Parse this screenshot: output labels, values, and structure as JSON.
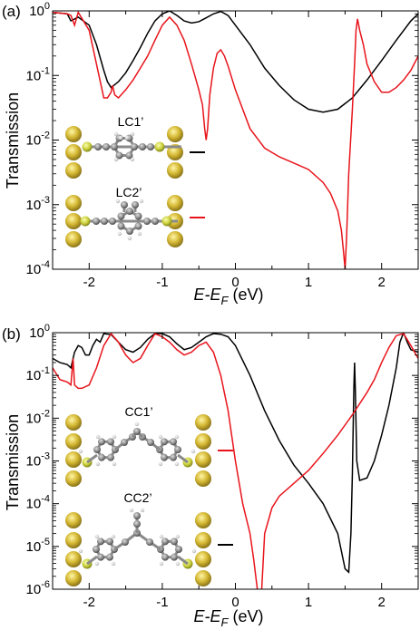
{
  "chart_data": [
    {
      "panel_label": "(a)",
      "type": "line",
      "xlabel_main": "E",
      "xlabel_sub1": "-E",
      "xlabel_sub2": "F",
      "xlabel_unit": "(eV)",
      "ylabel": "Transmission",
      "xlim": [
        -2.5,
        2.5
      ],
      "ylim": [
        0.0001,
        1
      ],
      "yscale": "log",
      "xticks": [
        "-2",
        "-1",
        "0",
        "1",
        "2"
      ],
      "yticks": [
        {
          "base": "10",
          "exp": "0"
        },
        {
          "base": "10",
          "exp": "-1"
        },
        {
          "base": "10",
          "exp": "-2"
        },
        {
          "base": "10",
          "exp": "-3"
        },
        {
          "base": "10",
          "exp": "-4"
        }
      ],
      "legend": [
        {
          "label": "LC1’",
          "color": "#000000"
        },
        {
          "label": "LC2’",
          "color": "#e8141b"
        }
      ],
      "series": [
        {
          "color": "#000000",
          "x": [
            -2.5,
            -2.3,
            -2.25,
            -2.15,
            -2.0,
            -1.9,
            -1.8,
            -1.75,
            -1.7,
            -1.6,
            -1.5,
            -1.4,
            -1.3,
            -1.2,
            -1.1,
            -1.0,
            -0.9,
            -0.8,
            -0.7,
            -0.6,
            -0.5,
            -0.4,
            -0.3,
            -0.2,
            -0.1,
            0.0,
            0.2,
            0.4,
            0.6,
            0.8,
            1.0,
            1.2,
            1.4,
            1.6,
            1.8,
            2.0,
            2.2,
            2.4,
            2.5
          ],
          "y": [
            0.95,
            0.9,
            0.7,
            0.8,
            0.6,
            0.3,
            0.12,
            0.08,
            0.065,
            0.08,
            0.11,
            0.17,
            0.27,
            0.45,
            0.7,
            0.9,
            1.0,
            0.85,
            0.7,
            0.65,
            0.68,
            0.78,
            0.9,
            0.98,
            0.85,
            0.6,
            0.3,
            0.13,
            0.07,
            0.042,
            0.03,
            0.027,
            0.03,
            0.045,
            0.085,
            0.17,
            0.35,
            0.7,
            0.9
          ]
        },
        {
          "color": "#e8141b",
          "x": [
            -2.5,
            -2.3,
            -2.25,
            -2.2,
            -2.15,
            -2.0,
            -1.9,
            -1.8,
            -1.75,
            -1.7,
            -1.68,
            -1.65,
            -1.6,
            -1.5,
            -1.4,
            -1.3,
            -1.2,
            -1.1,
            -1.0,
            -0.9,
            -0.8,
            -0.7,
            -0.6,
            -0.5,
            -0.45,
            -0.42,
            -0.4,
            -0.38,
            -0.35,
            -0.3,
            -0.25,
            -0.2,
            -0.15,
            -0.1,
            0.0,
            0.2,
            0.4,
            0.6,
            0.8,
            1.0,
            1.2,
            1.3,
            1.4,
            1.45,
            1.48,
            1.5,
            1.52,
            1.55,
            1.6,
            1.63,
            1.65,
            1.67,
            1.7,
            1.75,
            1.8,
            1.9,
            2.0,
            2.1,
            2.2,
            2.3,
            2.4,
            2.5
          ],
          "y": [
            0.95,
            0.9,
            0.85,
            0.6,
            0.95,
            0.5,
            0.15,
            0.045,
            0.045,
            0.055,
            0.07,
            0.05,
            0.045,
            0.06,
            0.085,
            0.13,
            0.2,
            0.35,
            0.6,
            0.8,
            0.6,
            0.35,
            0.15,
            0.06,
            0.035,
            0.015,
            0.01,
            0.015,
            0.05,
            0.13,
            0.22,
            0.25,
            0.2,
            0.14,
            0.06,
            0.015,
            0.0075,
            0.0055,
            0.0044,
            0.0035,
            0.0022,
            0.0015,
            0.0008,
            0.0004,
            0.00018,
            0.0001,
            0.0003,
            0.003,
            0.03,
            0.15,
            0.5,
            0.75,
            0.5,
            0.3,
            0.15,
            0.08,
            0.055,
            0.055,
            0.065,
            0.085,
            0.12,
            0.2
          ]
        }
      ]
    },
    {
      "panel_label": "(b)",
      "type": "line",
      "xlabel_main": "E",
      "xlabel_sub1": "-E",
      "xlabel_sub2": "F",
      "xlabel_unit": "(eV)",
      "ylabel": "Transmission",
      "xlim": [
        -2.5,
        2.5
      ],
      "ylim": [
        1e-06,
        1
      ],
      "yscale": "log",
      "xticks": [
        "-2",
        "-1",
        "0",
        "1",
        "2"
      ],
      "yticks": [
        {
          "base": "10",
          "exp": "0"
        },
        {
          "base": "10",
          "exp": "-1"
        },
        {
          "base": "10",
          "exp": "-2"
        },
        {
          "base": "10",
          "exp": "-3"
        },
        {
          "base": "10",
          "exp": "-4"
        },
        {
          "base": "10",
          "exp": "-5"
        },
        {
          "base": "10",
          "exp": "-6"
        }
      ],
      "legend": [
        {
          "label": "CC1’",
          "color": "#e8141b"
        },
        {
          "label": "CC2’",
          "color": "#000000"
        }
      ],
      "series": [
        {
          "color": "#000000",
          "x": [
            -2.5,
            -2.4,
            -2.3,
            -2.25,
            -2.2,
            -2.15,
            -2.1,
            -2.05,
            -2.0,
            -1.95,
            -1.9,
            -1.85,
            -1.8,
            -1.7,
            -1.6,
            -1.5,
            -1.4,
            -1.3,
            -1.2,
            -1.1,
            -1.0,
            -0.9,
            -0.8,
            -0.7,
            -0.6,
            -0.5,
            -0.4,
            -0.3,
            -0.2,
            -0.1,
            0.0,
            0.2,
            0.4,
            0.6,
            0.8,
            1.0,
            1.2,
            1.4,
            1.5,
            1.55,
            1.58,
            1.6,
            1.62,
            1.63,
            1.64,
            1.66,
            1.7,
            1.8,
            1.9,
            2.0,
            2.1,
            2.2,
            2.25,
            2.3,
            2.35,
            2.4,
            2.5
          ],
          "y": [
            0.25,
            0.2,
            0.18,
            0.15,
            0.35,
            0.5,
            0.45,
            0.3,
            0.3,
            0.5,
            0.7,
            0.6,
            0.95,
            0.9,
            0.6,
            0.4,
            0.35,
            0.45,
            0.7,
            0.95,
            0.95,
            0.8,
            0.55,
            0.4,
            0.45,
            0.6,
            0.8,
            0.95,
            0.92,
            0.8,
            0.5,
            0.1,
            0.015,
            0.003,
            0.0008,
            0.0003,
            0.0001,
            2e-05,
            3e-06,
            2.5e-06,
            2e-05,
            0.0005,
            0.05,
            0.2,
            0.05,
            0.001,
            0.00035,
            0.0004,
            0.001,
            0.004,
            0.02,
            0.15,
            0.6,
            1.0,
            0.6,
            0.4,
            0.35
          ]
        },
        {
          "color": "#e8141b",
          "x": [
            -2.5,
            -2.4,
            -2.3,
            -2.25,
            -2.22,
            -2.2,
            -2.15,
            -2.1,
            -2.0,
            -1.9,
            -1.8,
            -1.7,
            -1.6,
            -1.5,
            -1.4,
            -1.3,
            -1.2,
            -1.1,
            -1.0,
            -0.9,
            -0.8,
            -0.7,
            -0.6,
            -0.5,
            -0.4,
            -0.3,
            -0.2,
            -0.1,
            0.0,
            0.1,
            0.2,
            0.25,
            0.3,
            0.33,
            0.36,
            0.4,
            0.5,
            0.6,
            0.8,
            1.0,
            1.2,
            1.4,
            1.6,
            1.8,
            1.9,
            2.0,
            2.1,
            2.2,
            2.3,
            2.4,
            2.5
          ],
          "y": [
            0.15,
            0.08,
            0.07,
            0.06,
            0.25,
            0.06,
            0.05,
            0.05,
            0.06,
            0.15,
            0.5,
            0.95,
            0.6,
            0.3,
            0.2,
            0.25,
            0.5,
            0.95,
            0.8,
            0.6,
            0.4,
            0.3,
            0.35,
            0.5,
            0.6,
            0.35,
            0.1,
            0.015,
            0.001,
            0.0001,
            2e-05,
            5e-06,
            1e-06,
            5e-07,
            1e-06,
            2e-05,
            8e-05,
            0.00015,
            0.0003,
            0.0006,
            0.0015,
            0.004,
            0.012,
            0.04,
            0.08,
            0.2,
            0.45,
            0.85,
            0.95,
            0.5,
            0.25
          ]
        }
      ]
    }
  ]
}
